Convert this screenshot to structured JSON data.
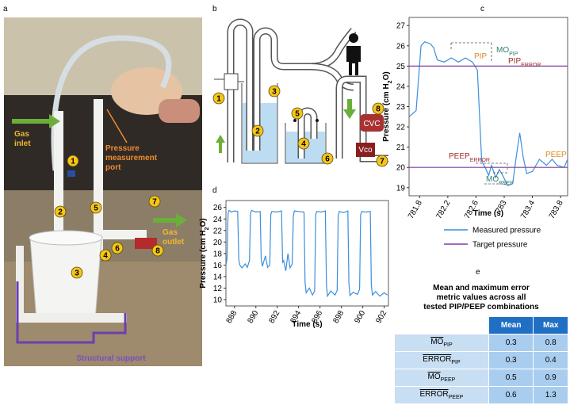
{
  "panel_labels": [
    "a",
    "b",
    "c",
    "d",
    "e"
  ],
  "photo": {
    "markers": [
      "1",
      "2",
      "3",
      "4",
      "5",
      "6",
      "7",
      "8"
    ],
    "gas_inlet": [
      "Gas",
      "inlet"
    ],
    "pressure_port": [
      "Pressure",
      "measurement",
      "port"
    ],
    "gas_outlet": [
      "Gas",
      "outlet"
    ],
    "structural_support": "Structural support"
  },
  "diagram": {
    "markers": [
      "1",
      "2",
      "3",
      "4",
      "5",
      "6",
      "7",
      "8"
    ],
    "cvc": "CVC",
    "vco": "Vco"
  },
  "chart_data": [
    {
      "type": "line",
      "x_label": "Time (s)",
      "y_label": {
        "text": "Pressure (cm H",
        "sub": "2",
        "tail": "O)"
      },
      "xlim": [
        781.65,
        783.9
      ],
      "xticks": [
        781.8,
        782.2,
        782.6,
        783,
        783.4,
        783.8
      ],
      "ylim": [
        18.6,
        27.4
      ],
      "yticks": [
        19,
        20,
        21,
        22,
        23,
        24,
        25,
        26,
        27
      ],
      "legend": "below",
      "series": [
        {
          "name": "Measured pressure",
          "color": "#3b8fdc",
          "x": [
            781.65,
            781.75,
            781.82,
            781.87,
            781.95,
            782.0,
            782.05,
            782.15,
            782.25,
            782.35,
            782.45,
            782.55,
            782.62,
            782.68,
            782.73,
            782.78,
            782.82,
            782.88,
            782.93,
            782.98,
            783.05,
            783.12,
            783.17,
            783.22,
            783.27,
            783.32,
            783.4,
            783.5,
            783.6,
            783.68,
            783.75,
            783.85,
            783.9
          ],
          "values": [
            22.5,
            22.8,
            26.0,
            26.2,
            26.1,
            25.9,
            25.3,
            25.2,
            25.4,
            25.2,
            25.4,
            25.2,
            24.8,
            20.3,
            20.0,
            19.6,
            20.1,
            19.5,
            19.9,
            19.6,
            19.1,
            19.2,
            20.5,
            21.7,
            20.5,
            19.7,
            19.8,
            20.4,
            20.1,
            20.4,
            20.1,
            20.0,
            20.4
          ]
        },
        {
          "name": "Target pressure",
          "color": "#7b3fa0",
          "x": [
            781.65,
            783.9,
            null,
            781.65,
            783.9
          ],
          "values": [
            25,
            25,
            null,
            20,
            20
          ]
        }
      ],
      "annotations": [
        {
          "text": "MO",
          "sub": "PIP",
          "color": "#2e7d6e"
        },
        {
          "text": "PIP",
          "color": "#d98a20"
        },
        {
          "text": "PIP",
          "sub": "ERROR",
          "color": "#a52a2a"
        },
        {
          "text": "PEEP",
          "sub": "ERROR",
          "color": "#a52a2a"
        },
        {
          "text": "PEEP",
          "color": "#d98a20"
        },
        {
          "text": "MO",
          "sub": "PEEP",
          "color": "#2e7d6e"
        }
      ]
    },
    {
      "type": "line",
      "x_label": "Time (s)",
      "y_label": {
        "text": "Pressure (cm H",
        "sub": "2",
        "tail": "O)"
      },
      "xlim": [
        887.2,
        902.4
      ],
      "xticks": [
        888,
        890,
        892,
        894,
        896,
        898,
        900,
        902
      ],
      "ylim": [
        8.9,
        27.2
      ],
      "yticks": [
        10,
        12,
        14,
        16,
        18,
        20,
        22,
        24,
        26
      ],
      "series": [
        {
          "color": "#3b8fdc",
          "x": [
            887.2,
            887.3,
            887.4,
            887.5,
            887.7,
            888.0,
            888.3,
            888.4,
            888.5,
            888.7,
            889.0,
            889.2,
            889.4,
            889.5,
            889.6,
            890.0,
            890.4,
            890.5,
            890.6,
            890.9,
            891.1,
            891.3,
            891.4,
            891.5,
            892.0,
            892.4,
            892.5,
            892.6,
            892.8,
            893.0,
            893.2,
            893.4,
            893.5,
            893.6,
            894.0,
            894.5,
            894.6,
            894.7,
            895.0,
            895.3,
            895.5,
            895.6,
            895.7,
            896.1,
            896.5,
            896.6,
            896.7,
            897.0,
            897.4,
            897.6,
            897.7,
            897.8,
            898.2,
            898.6,
            898.7,
            898.8,
            899.1,
            899.5,
            899.7,
            899.8,
            899.9,
            900.3,
            900.7,
            900.8,
            900.9,
            901.2,
            901.6,
            902.0,
            902.3
          ],
          "values": [
            16,
            17,
            25,
            25.5,
            25.2,
            25.4,
            25.3,
            17,
            16,
            15.5,
            16.2,
            15.6,
            16.8,
            25,
            25.5,
            25.2,
            25.3,
            17,
            15.8,
            17.6,
            15.6,
            16.0,
            24.8,
            25.3,
            25.2,
            25.4,
            16.5,
            16.8,
            15.0,
            18.0,
            15.5,
            16.2,
            24.5,
            25.4,
            25.3,
            25.2,
            13.0,
            11.2,
            12.0,
            10.8,
            11.5,
            24.8,
            25.3,
            25.2,
            25.4,
            12.5,
            10.6,
            11.5,
            10.8,
            11.6,
            24.6,
            25.3,
            25.1,
            25.4,
            12.8,
            10.7,
            11.3,
            10.9,
            11.8,
            24.7,
            25.3,
            25.2,
            25.3,
            12.6,
            10.8,
            11.4,
            10.6,
            11.2,
            10.8
          ]
        }
      ]
    }
  ],
  "table": {
    "title": [
      "Mean and maximum error",
      "metric values across all",
      "tested PIP/PEEP combinations"
    ],
    "header": [
      "Mean",
      "Max"
    ],
    "rows": [
      {
        "label": "MO",
        "sub": "PIP",
        "mean": 0.3,
        "max": 0.8
      },
      {
        "label": "ERROR",
        "sub": "PIP",
        "mean": 0.3,
        "max": 0.4
      },
      {
        "label": "MO",
        "sub": "PEEP",
        "mean": 0.5,
        "max": 0.9
      },
      {
        "label": "ERROR",
        "sub": "PEEP",
        "mean": 0.6,
        "max": 1.3
      }
    ]
  }
}
